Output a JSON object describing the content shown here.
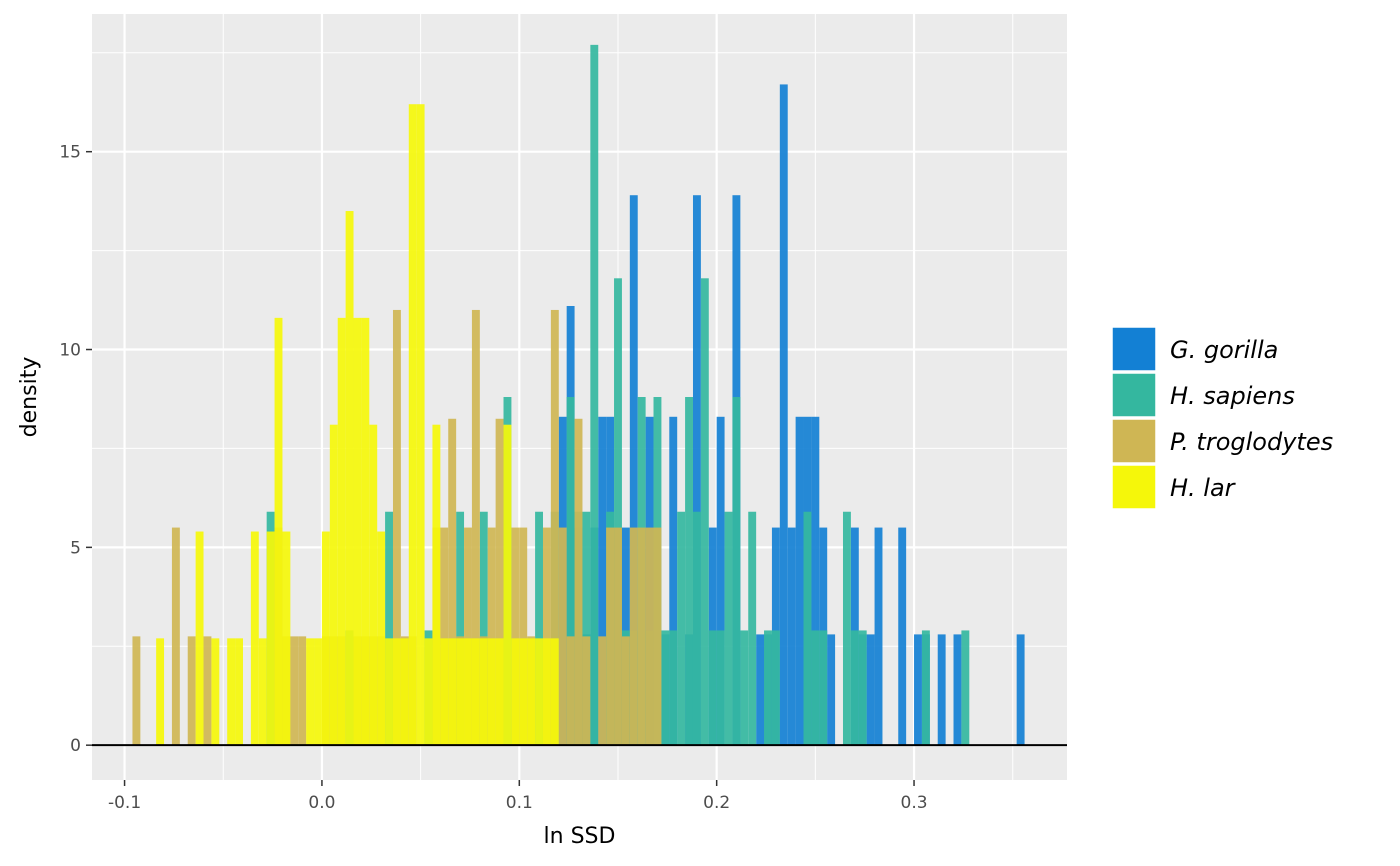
{
  "chart_data": {
    "type": "histogram",
    "title": "",
    "xlabel": "ln SSD",
    "ylabel": "density",
    "xlim": [
      -0.1165,
      0.3775
    ],
    "ylim": [
      -0.88,
      18.48
    ],
    "bin_width": 0.004,
    "grid": true,
    "legend_position": "right",
    "x_ticks": [
      -0.1,
      0.0,
      0.1,
      0.2,
      0.3
    ],
    "x_tick_labels": [
      "-0.1",
      "0.0",
      "0.1",
      "0.2",
      "0.3"
    ],
    "y_ticks": [
      0,
      5,
      10,
      15
    ],
    "y_tick_labels": [
      "0",
      "5",
      "10",
      "15"
    ],
    "series": [
      {
        "name": "G. gorilla",
        "color": "#1380D4",
        "bins": [
          {
            "x": 0.122,
            "density": 8.3
          },
          {
            "x": 0.126,
            "density": 11.1
          },
          {
            "x": 0.13,
            "density": 5.5
          },
          {
            "x": 0.134,
            "density": 2.8
          },
          {
            "x": 0.138,
            "density": 5.5
          },
          {
            "x": 0.142,
            "density": 8.3
          },
          {
            "x": 0.146,
            "density": 8.3
          },
          {
            "x": 0.15,
            "density": 5.5
          },
          {
            "x": 0.154,
            "density": 5.5
          },
          {
            "x": 0.158,
            "density": 13.9
          },
          {
            "x": 0.166,
            "density": 8.3
          },
          {
            "x": 0.174,
            "density": 2.8
          },
          {
            "x": 0.178,
            "density": 8.3
          },
          {
            "x": 0.186,
            "density": 2.8
          },
          {
            "x": 0.19,
            "density": 13.9
          },
          {
            "x": 0.198,
            "density": 5.5
          },
          {
            "x": 0.202,
            "density": 8.3
          },
          {
            "x": 0.21,
            "density": 13.9
          },
          {
            "x": 0.222,
            "density": 2.8
          },
          {
            "x": 0.226,
            "density": 2.8
          },
          {
            "x": 0.23,
            "density": 5.5
          },
          {
            "x": 0.234,
            "density": 16.7
          },
          {
            "x": 0.238,
            "density": 5.5
          },
          {
            "x": 0.242,
            "density": 8.3
          },
          {
            "x": 0.246,
            "density": 8.3
          },
          {
            "x": 0.25,
            "density": 8.3
          },
          {
            "x": 0.254,
            "density": 5.5
          },
          {
            "x": 0.258,
            "density": 2.8
          },
          {
            "x": 0.27,
            "density": 5.5
          },
          {
            "x": 0.274,
            "density": 2.8
          },
          {
            "x": 0.278,
            "density": 2.8
          },
          {
            "x": 0.282,
            "density": 5.5
          },
          {
            "x": 0.294,
            "density": 5.5
          },
          {
            "x": 0.302,
            "density": 2.8
          },
          {
            "x": 0.306,
            "density": 2.8
          },
          {
            "x": 0.314,
            "density": 2.8
          },
          {
            "x": 0.322,
            "density": 2.8
          },
          {
            "x": 0.354,
            "density": 2.8
          }
        ]
      },
      {
        "name": "H. sapiens",
        "color": "#34B79F",
        "bins": [
          {
            "x": -0.026,
            "density": 5.9
          },
          {
            "x": 0.014,
            "density": 2.9
          },
          {
            "x": 0.034,
            "density": 5.9
          },
          {
            "x": 0.054,
            "density": 2.9
          },
          {
            "x": 0.07,
            "density": 5.9
          },
          {
            "x": 0.082,
            "density": 5.9
          },
          {
            "x": 0.094,
            "density": 8.8
          },
          {
            "x": 0.11,
            "density": 5.9
          },
          {
            "x": 0.118,
            "density": 5.9
          },
          {
            "x": 0.126,
            "density": 8.8
          },
          {
            "x": 0.13,
            "density": 5.9
          },
          {
            "x": 0.134,
            "density": 5.9
          },
          {
            "x": 0.138,
            "density": 17.7
          },
          {
            "x": 0.146,
            "density": 5.9
          },
          {
            "x": 0.15,
            "density": 11.8
          },
          {
            "x": 0.154,
            "density": 2.9
          },
          {
            "x": 0.158,
            "density": 2.9
          },
          {
            "x": 0.162,
            "density": 8.8
          },
          {
            "x": 0.166,
            "density": 2.9
          },
          {
            "x": 0.17,
            "density": 8.8
          },
          {
            "x": 0.174,
            "density": 2.9
          },
          {
            "x": 0.178,
            "density": 2.9
          },
          {
            "x": 0.182,
            "density": 5.9
          },
          {
            "x": 0.186,
            "density": 8.8
          },
          {
            "x": 0.19,
            "density": 5.9
          },
          {
            "x": 0.194,
            "density": 11.8
          },
          {
            "x": 0.198,
            "density": 2.9
          },
          {
            "x": 0.202,
            "density": 2.9
          },
          {
            "x": 0.206,
            "density": 5.9
          },
          {
            "x": 0.21,
            "density": 8.8
          },
          {
            "x": 0.214,
            "density": 2.9
          },
          {
            "x": 0.218,
            "density": 5.9
          },
          {
            "x": 0.226,
            "density": 2.9
          },
          {
            "x": 0.23,
            "density": 2.9
          },
          {
            "x": 0.246,
            "density": 5.9
          },
          {
            "x": 0.25,
            "density": 2.9
          },
          {
            "x": 0.254,
            "density": 2.9
          },
          {
            "x": 0.266,
            "density": 5.9
          },
          {
            "x": 0.27,
            "density": 2.9
          },
          {
            "x": 0.274,
            "density": 2.9
          },
          {
            "x": 0.306,
            "density": 2.9
          },
          {
            "x": 0.326,
            "density": 2.9
          }
        ]
      },
      {
        "name": "P. troglodytes",
        "color": "#CFB654",
        "bins": [
          {
            "x": -0.094,
            "density": 2.75
          },
          {
            "x": -0.074,
            "density": 5.5
          },
          {
            "x": -0.066,
            "density": 2.75
          },
          {
            "x": -0.058,
            "density": 2.75
          },
          {
            "x": -0.022,
            "density": 5.5
          },
          {
            "x": -0.018,
            "density": 2.75
          },
          {
            "x": -0.014,
            "density": 2.75
          },
          {
            "x": -0.01,
            "density": 2.75
          },
          {
            "x": 0.002,
            "density": 2.75
          },
          {
            "x": 0.006,
            "density": 2.75
          },
          {
            "x": 0.01,
            "density": 2.75
          },
          {
            "x": 0.018,
            "density": 2.75
          },
          {
            "x": 0.022,
            "density": 2.75
          },
          {
            "x": 0.026,
            "density": 2.75
          },
          {
            "x": 0.03,
            "density": 2.75
          },
          {
            "x": 0.038,
            "density": 11.0
          },
          {
            "x": 0.042,
            "density": 2.75
          },
          {
            "x": 0.046,
            "density": 2.75
          },
          {
            "x": 0.058,
            "density": 5.5
          },
          {
            "x": 0.062,
            "density": 5.5
          },
          {
            "x": 0.066,
            "density": 8.25
          },
          {
            "x": 0.07,
            "density": 2.75
          },
          {
            "x": 0.074,
            "density": 5.5
          },
          {
            "x": 0.078,
            "density": 11.0
          },
          {
            "x": 0.082,
            "density": 2.75
          },
          {
            "x": 0.086,
            "density": 5.5
          },
          {
            "x": 0.09,
            "density": 8.25
          },
          {
            "x": 0.098,
            "density": 5.5
          },
          {
            "x": 0.102,
            "density": 5.5
          },
          {
            "x": 0.106,
            "density": 2.75
          },
          {
            "x": 0.114,
            "density": 5.5
          },
          {
            "x": 0.118,
            "density": 11.0
          },
          {
            "x": 0.122,
            "density": 5.5
          },
          {
            "x": 0.126,
            "density": 2.75
          },
          {
            "x": 0.13,
            "density": 8.25
          },
          {
            "x": 0.134,
            "density": 2.75
          },
          {
            "x": 0.142,
            "density": 2.75
          },
          {
            "x": 0.146,
            "density": 5.5
          },
          {
            "x": 0.15,
            "density": 5.5
          },
          {
            "x": 0.154,
            "density": 2.75
          },
          {
            "x": 0.158,
            "density": 5.5
          },
          {
            "x": 0.162,
            "density": 5.5
          },
          {
            "x": 0.166,
            "density": 5.5
          },
          {
            "x": 0.17,
            "density": 5.5
          }
        ]
      },
      {
        "name": "H. lar",
        "color": "#F5F70A",
        "bins": [
          {
            "x": -0.082,
            "density": 2.7
          },
          {
            "x": -0.062,
            "density": 5.4
          },
          {
            "x": -0.054,
            "density": 2.7
          },
          {
            "x": -0.046,
            "density": 2.7
          },
          {
            "x": -0.042,
            "density": 2.7
          },
          {
            "x": -0.034,
            "density": 5.4
          },
          {
            "x": -0.03,
            "density": 2.7
          },
          {
            "x": -0.026,
            "density": 5.4
          },
          {
            "x": -0.022,
            "density": 10.8
          },
          {
            "x": -0.018,
            "density": 5.4
          },
          {
            "x": -0.006,
            "density": 2.7
          },
          {
            "x": -0.002,
            "density": 2.7
          },
          {
            "x": 0.002,
            "density": 5.4
          },
          {
            "x": 0.006,
            "density": 8.1
          },
          {
            "x": 0.01,
            "density": 10.8
          },
          {
            "x": 0.014,
            "density": 13.5
          },
          {
            "x": 0.018,
            "density": 10.8
          },
          {
            "x": 0.022,
            "density": 10.8
          },
          {
            "x": 0.026,
            "density": 8.1
          },
          {
            "x": 0.03,
            "density": 5.4
          },
          {
            "x": 0.034,
            "density": 2.7
          },
          {
            "x": 0.038,
            "density": 2.7
          },
          {
            "x": 0.042,
            "density": 2.7
          },
          {
            "x": 0.046,
            "density": 16.2
          },
          {
            "x": 0.05,
            "density": 16.2
          },
          {
            "x": 0.054,
            "density": 2.7
          },
          {
            "x": 0.058,
            "density": 8.1
          },
          {
            "x": 0.062,
            "density": 2.7
          },
          {
            "x": 0.066,
            "density": 2.7
          },
          {
            "x": 0.07,
            "density": 2.7
          },
          {
            "x": 0.074,
            "density": 2.7
          },
          {
            "x": 0.078,
            "density": 2.7
          },
          {
            "x": 0.082,
            "density": 2.7
          },
          {
            "x": 0.086,
            "density": 2.7
          },
          {
            "x": 0.09,
            "density": 2.7
          },
          {
            "x": 0.094,
            "density": 8.1
          },
          {
            "x": 0.098,
            "density": 2.7
          },
          {
            "x": 0.102,
            "density": 2.7
          },
          {
            "x": 0.106,
            "density": 2.7
          },
          {
            "x": 0.11,
            "density": 2.7
          },
          {
            "x": 0.114,
            "density": 2.7
          },
          {
            "x": 0.118,
            "density": 2.7
          }
        ]
      }
    ]
  }
}
